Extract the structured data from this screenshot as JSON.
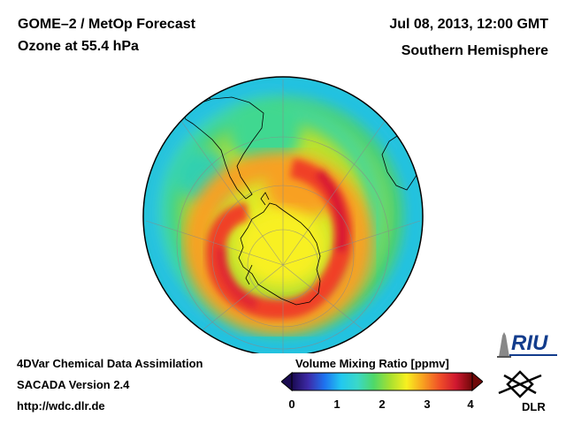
{
  "header": {
    "title_line1": "GOME–2 / MetOp Forecast",
    "title_line2": "Ozone at 55.4 hPa",
    "date": "Jul 08, 2013, 12:00 GMT",
    "region": "Southern Hemisphere"
  },
  "footer": {
    "line1": "4DVar Chemical Data Assimilation",
    "line2": "SACADA Version 2.4",
    "line3": "http://wdc.dlr.de"
  },
  "colorbar": {
    "title": "Volume Mixing Ratio [ppmv]",
    "ticks": [
      "0",
      "1",
      "2",
      "3",
      "4"
    ],
    "range": [
      0,
      4
    ],
    "colors": [
      "#1a0a50",
      "#3d2aa8",
      "#1e73f0",
      "#22c8f0",
      "#3ad8c8",
      "#4fd868",
      "#a8e030",
      "#f8f020",
      "#f8a020",
      "#f05028",
      "#d01830",
      "#700808"
    ]
  },
  "logos": {
    "riu_text": "RIU",
    "dlr_text": "DLR"
  },
  "map": {
    "projection": "orthographic",
    "center": "South Pole"
  }
}
